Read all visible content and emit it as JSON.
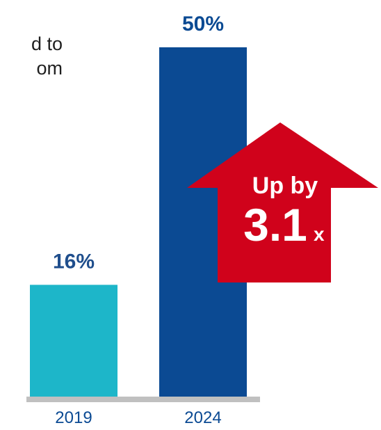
{
  "intro_text_fragment": [
    "d to",
    "om"
  ],
  "chart_data": {
    "type": "bar",
    "categories": [
      "2019",
      "2024"
    ],
    "values": [
      16,
      50
    ],
    "value_labels": [
      "16%",
      "50%"
    ],
    "ylim": [
      0,
      50
    ],
    "grid": false,
    "bar_colors": [
      "#1db6c9",
      "#0b4a93"
    ],
    "label_colors": [
      "#1f4e8c",
      "#0b4a93"
    ],
    "axis_color": "#c0c0c0",
    "annotation": {
      "line1": "Up by",
      "value": "3.1",
      "unit": "x",
      "color": "#d0021b"
    }
  }
}
